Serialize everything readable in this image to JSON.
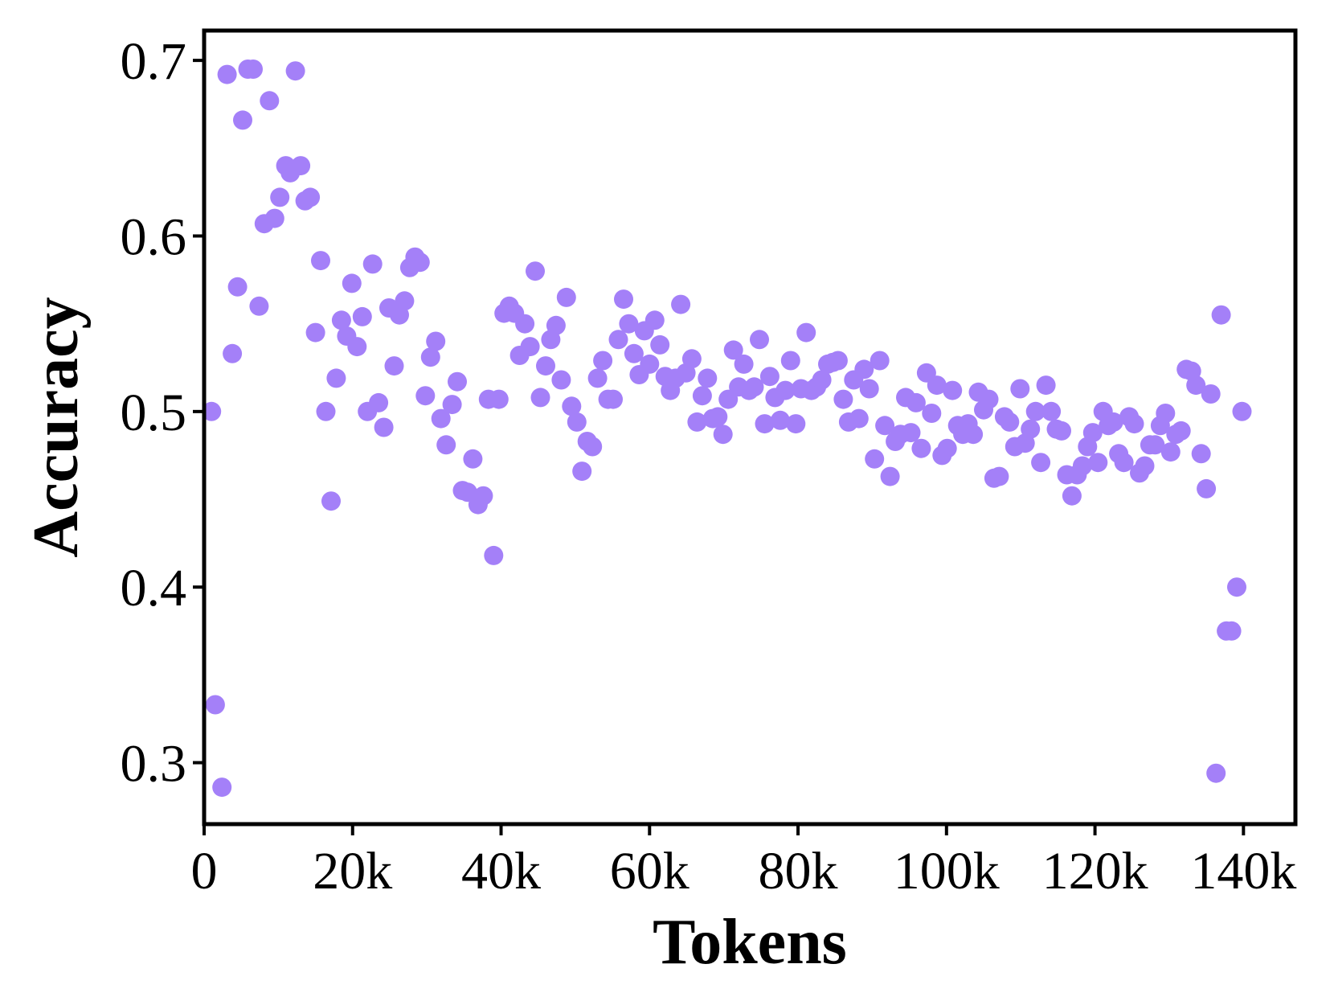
{
  "chart_data": {
    "type": "scatter",
    "xlabel": "Tokens",
    "ylabel": "Accuracy",
    "xlim": [
      0,
      147000
    ],
    "ylim": [
      0.265,
      0.717
    ],
    "x_ticks": [
      0,
      20000,
      40000,
      60000,
      80000,
      100000,
      120000,
      140000
    ],
    "x_tick_labels": [
      "0",
      "20k",
      "40k",
      "60k",
      "80k",
      "100k",
      "120k",
      "140k"
    ],
    "y_ticks": [
      0.3,
      0.4,
      0.5,
      0.6,
      0.7
    ],
    "y_tick_labels": [
      "0.3",
      "0.4",
      "0.5",
      "0.6",
      "0.7"
    ],
    "grid": false,
    "legend": "none",
    "marker_color": "#a480f8",
    "points": [
      [
        1000,
        0.5
      ],
      [
        1500,
        0.333
      ],
      [
        2400,
        0.286
      ],
      [
        3100,
        0.692
      ],
      [
        3800,
        0.533
      ],
      [
        4500,
        0.571
      ],
      [
        5200,
        0.666
      ],
      [
        5900,
        0.695
      ],
      [
        6600,
        0.695
      ],
      [
        7400,
        0.56
      ],
      [
        8100,
        0.607
      ],
      [
        8800,
        0.677
      ],
      [
        9500,
        0.61
      ],
      [
        10200,
        0.622
      ],
      [
        11000,
        0.64
      ],
      [
        11600,
        0.636
      ],
      [
        12300,
        0.694
      ],
      [
        13000,
        0.64
      ],
      [
        13600,
        0.62
      ],
      [
        14300,
        0.622
      ],
      [
        15000,
        0.545
      ],
      [
        15700,
        0.586
      ],
      [
        16400,
        0.5
      ],
      [
        17100,
        0.449
      ],
      [
        17800,
        0.519
      ],
      [
        18500,
        0.552
      ],
      [
        19200,
        0.543
      ],
      [
        19900,
        0.573
      ],
      [
        20600,
        0.537
      ],
      [
        21300,
        0.554
      ],
      [
        22000,
        0.5
      ],
      [
        22700,
        0.584
      ],
      [
        23500,
        0.505
      ],
      [
        24200,
        0.491
      ],
      [
        24900,
        0.559
      ],
      [
        25600,
        0.526
      ],
      [
        26300,
        0.555
      ],
      [
        27000,
        0.563
      ],
      [
        27700,
        0.582
      ],
      [
        28400,
        0.588
      ],
      [
        29100,
        0.585
      ],
      [
        29800,
        0.509
      ],
      [
        30500,
        0.531
      ],
      [
        31200,
        0.54
      ],
      [
        31900,
        0.496
      ],
      [
        32600,
        0.481
      ],
      [
        33400,
        0.504
      ],
      [
        34100,
        0.517
      ],
      [
        34800,
        0.455
      ],
      [
        35500,
        0.454
      ],
      [
        36200,
        0.473
      ],
      [
        36900,
        0.447
      ],
      [
        37600,
        0.452
      ],
      [
        38300,
        0.507
      ],
      [
        39000,
        0.418
      ],
      [
        39700,
        0.507
      ],
      [
        40400,
        0.556
      ],
      [
        41100,
        0.56
      ],
      [
        41800,
        0.556
      ],
      [
        42500,
        0.532
      ],
      [
        43200,
        0.55
      ],
      [
        43900,
        0.537
      ],
      [
        44600,
        0.58
      ],
      [
        45300,
        0.508
      ],
      [
        46000,
        0.526
      ],
      [
        46700,
        0.541
      ],
      [
        47400,
        0.549
      ],
      [
        48100,
        0.518
      ],
      [
        48800,
        0.565
      ],
      [
        49500,
        0.503
      ],
      [
        50200,
        0.494
      ],
      [
        50900,
        0.466
      ],
      [
        51600,
        0.483
      ],
      [
        52300,
        0.48
      ],
      [
        53000,
        0.519
      ],
      [
        53700,
        0.529
      ],
      [
        54400,
        0.507
      ],
      [
        55100,
        0.507
      ],
      [
        55800,
        0.541
      ],
      [
        56500,
        0.564
      ],
      [
        57200,
        0.55
      ],
      [
        57900,
        0.533
      ],
      [
        58600,
        0.521
      ],
      [
        59300,
        0.546
      ],
      [
        60000,
        0.527
      ],
      [
        60700,
        0.552
      ],
      [
        61400,
        0.538
      ],
      [
        62100,
        0.52
      ],
      [
        62800,
        0.512
      ],
      [
        63500,
        0.519
      ],
      [
        64200,
        0.561
      ],
      [
        64900,
        0.522
      ],
      [
        65700,
        0.53
      ],
      [
        66400,
        0.494
      ],
      [
        67100,
        0.509
      ],
      [
        67800,
        0.519
      ],
      [
        68500,
        0.496
      ],
      [
        69200,
        0.497
      ],
      [
        69900,
        0.487
      ],
      [
        70600,
        0.507
      ],
      [
        71300,
        0.535
      ],
      [
        72000,
        0.514
      ],
      [
        72700,
        0.527
      ],
      [
        73400,
        0.512
      ],
      [
        74100,
        0.514
      ],
      [
        74800,
        0.541
      ],
      [
        75500,
        0.493
      ],
      [
        76200,
        0.52
      ],
      [
        76900,
        0.508
      ],
      [
        77600,
        0.495
      ],
      [
        78300,
        0.512
      ],
      [
        79000,
        0.529
      ],
      [
        79700,
        0.493
      ],
      [
        80400,
        0.513
      ],
      [
        81100,
        0.545
      ],
      [
        81800,
        0.512
      ],
      [
        82500,
        0.514
      ],
      [
        83200,
        0.518
      ],
      [
        84000,
        0.527
      ],
      [
        84700,
        0.528
      ],
      [
        85400,
        0.529
      ],
      [
        86100,
        0.507
      ],
      [
        86800,
        0.494
      ],
      [
        87500,
        0.518
      ],
      [
        88200,
        0.496
      ],
      [
        88900,
        0.524
      ],
      [
        89600,
        0.513
      ],
      [
        90300,
        0.473
      ],
      [
        91000,
        0.529
      ],
      [
        91700,
        0.492
      ],
      [
        92400,
        0.463
      ],
      [
        93100,
        0.483
      ],
      [
        93800,
        0.487
      ],
      [
        94500,
        0.508
      ],
      [
        95200,
        0.488
      ],
      [
        95900,
        0.505
      ],
      [
        96600,
        0.479
      ],
      [
        97300,
        0.522
      ],
      [
        98000,
        0.499
      ],
      [
        98700,
        0.515
      ],
      [
        99400,
        0.475
      ],
      [
        100100,
        0.479
      ],
      [
        100800,
        0.512
      ],
      [
        101500,
        0.492
      ],
      [
        102200,
        0.487
      ],
      [
        102900,
        0.493
      ],
      [
        103600,
        0.487
      ],
      [
        104300,
        0.511
      ],
      [
        105000,
        0.501
      ],
      [
        105700,
        0.507
      ],
      [
        106400,
        0.462
      ],
      [
        107100,
        0.463
      ],
      [
        107800,
        0.497
      ],
      [
        108500,
        0.494
      ],
      [
        109200,
        0.48
      ],
      [
        109900,
        0.513
      ],
      [
        110600,
        0.482
      ],
      [
        111300,
        0.49
      ],
      [
        112000,
        0.5
      ],
      [
        112700,
        0.471
      ],
      [
        113400,
        0.515
      ],
      [
        114100,
        0.5
      ],
      [
        114800,
        0.49
      ],
      [
        115500,
        0.489
      ],
      [
        116200,
        0.464
      ],
      [
        116900,
        0.452
      ],
      [
        117600,
        0.464
      ],
      [
        118300,
        0.469
      ],
      [
        119000,
        0.48
      ],
      [
        119700,
        0.488
      ],
      [
        120400,
        0.471
      ],
      [
        121100,
        0.5
      ],
      [
        121800,
        0.492
      ],
      [
        122500,
        0.494
      ],
      [
        123200,
        0.476
      ],
      [
        123900,
        0.471
      ],
      [
        124600,
        0.497
      ],
      [
        125300,
        0.493
      ],
      [
        126000,
        0.465
      ],
      [
        126700,
        0.469
      ],
      [
        127400,
        0.481
      ],
      [
        128100,
        0.481
      ],
      [
        128800,
        0.492
      ],
      [
        129500,
        0.499
      ],
      [
        130200,
        0.477
      ],
      [
        130900,
        0.487
      ],
      [
        131600,
        0.489
      ],
      [
        132300,
        0.524
      ],
      [
        133000,
        0.523
      ],
      [
        133600,
        0.515
      ],
      [
        134300,
        0.476
      ],
      [
        135000,
        0.456
      ],
      [
        135600,
        0.51
      ],
      [
        136300,
        0.294
      ],
      [
        137000,
        0.555
      ],
      [
        137700,
        0.375
      ],
      [
        138400,
        0.375
      ],
      [
        139100,
        0.4
      ],
      [
        139800,
        0.5
      ]
    ]
  }
}
